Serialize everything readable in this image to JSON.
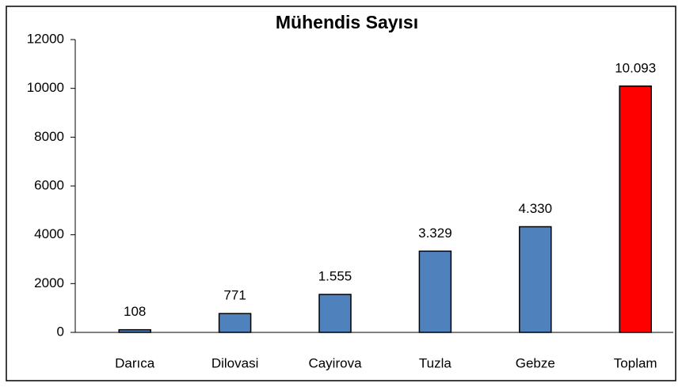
{
  "chart_data": {
    "type": "bar",
    "title": "Mühendis Sayısı",
    "categories": [
      "Darıca",
      "Dilovasi",
      "Cayirova",
      "Tuzla",
      "Gebze",
      "Toplam"
    ],
    "values": [
      108,
      771,
      1555,
      3329,
      4330,
      10093
    ],
    "value_labels": [
      "108",
      "771",
      "1.555",
      "3.329",
      "4.330",
      "10.093"
    ],
    "colors": [
      "#4f81bd",
      "#4f81bd",
      "#4f81bd",
      "#4f81bd",
      "#4f81bd",
      "#ff0000"
    ],
    "ylim": [
      0,
      12000
    ],
    "yticks": [
      0,
      2000,
      4000,
      6000,
      8000,
      10000,
      12000
    ],
    "grid": false
  }
}
